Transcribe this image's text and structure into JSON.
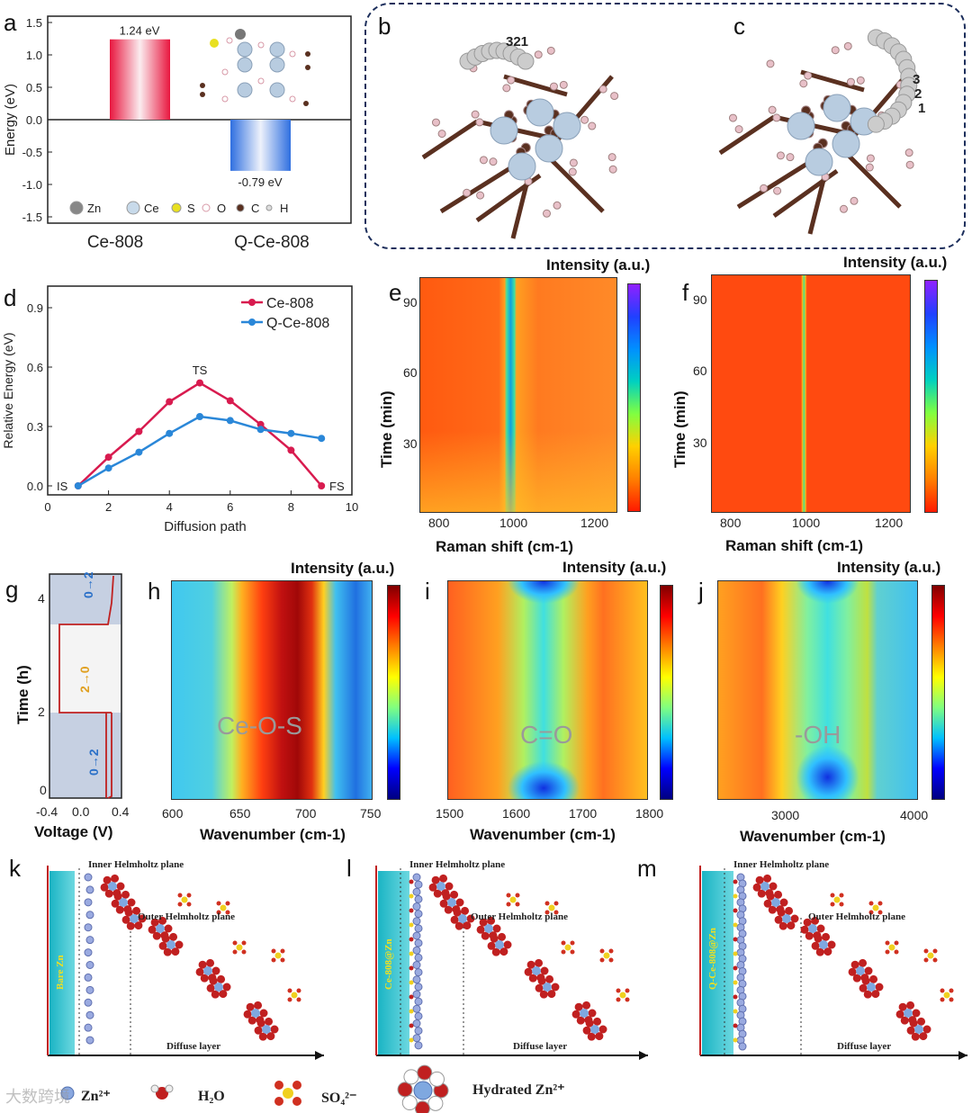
{
  "panel_labels": {
    "a": "a",
    "b": "b",
    "c": "c",
    "d": "d",
    "e": "e",
    "f": "f",
    "g": "g",
    "h": "h",
    "i": "i",
    "j": "j",
    "k": "k",
    "l": "l",
    "m": "m"
  },
  "colors": {
    "ce808": "#d81b4f",
    "qce808": "#2a87d8",
    "dashed_box": "#1d2f5c"
  },
  "chart_data": [
    {
      "id": "a",
      "type": "bar",
      "ylabel": "Energy (eV)",
      "ylim": [
        -1.5,
        1.5
      ],
      "yticks": [
        "1.5",
        "1.0",
        "0.5",
        "0.0",
        "-0.5",
        "-1.0",
        "-1.5"
      ],
      "categories": [
        "Ce-808",
        "Q-Ce-808"
      ],
      "values": [
        1.24,
        -0.79
      ],
      "data_labels": [
        "1.24 eV",
        "-0.79 eV"
      ],
      "legend": [
        "Zn",
        "Ce",
        "S",
        "O",
        "C",
        "H"
      ]
    },
    {
      "id": "d",
      "type": "line",
      "xlabel": "Diffusion path",
      "ylabel": "Relative Energy (eV)",
      "xlim": [
        0,
        10
      ],
      "ylim": [
        -0.05,
        1.0
      ],
      "xticks": [
        "0",
        "2",
        "4",
        "6",
        "8",
        "10"
      ],
      "yticks": [
        "0.0",
        "0.3",
        "0.6",
        "0.9"
      ],
      "legend_position": "top-right",
      "x": [
        1,
        2,
        3,
        4,
        5,
        6,
        7,
        8,
        9
      ],
      "series": [
        {
          "name": "Ce-808",
          "values": [
            0,
            0.145,
            0.275,
            0.425,
            0.52,
            0.43,
            0.31,
            0.18,
            0
          ]
        },
        {
          "name": "Q-Ce-808",
          "values": [
            0,
            0.09,
            0.17,
            0.265,
            0.35,
            0.33,
            0.285,
            0.265,
            0.24
          ]
        }
      ],
      "annotations": [
        "IS",
        "TS",
        "FS"
      ]
    },
    {
      "id": "e",
      "type": "heatmap",
      "title": "Intensity (a.u.)",
      "xlabel": "Raman shift (cm-1)",
      "ylabel": "Time (min)",
      "xticks": [
        "800",
        "1000",
        "1200"
      ],
      "yticks": [
        "30",
        "60",
        "90"
      ]
    },
    {
      "id": "f",
      "type": "heatmap",
      "title": "Intensity (a.u.)",
      "xlabel": "Raman shift (cm-1)",
      "ylabel": "Time (min)",
      "xticks": [
        "800",
        "1000",
        "1200"
      ],
      "yticks": [
        "30",
        "60",
        "90"
      ]
    },
    {
      "id": "g",
      "type": "line",
      "xlabel": "Voltage (V)",
      "ylabel": "Time (h)",
      "xticks": [
        "-0.4",
        "0.0",
        "0.4"
      ],
      "yticks": [
        "0",
        "2",
        "4"
      ],
      "annotations": [
        "0→2",
        "2→0",
        "0→2"
      ]
    },
    {
      "id": "h",
      "type": "heatmap",
      "title": "Intensity (a.u.)",
      "xlabel": "Wavenumber (cm-1)",
      "xticks": [
        "600",
        "650",
        "700",
        "750"
      ],
      "annotation": "Ce-O-S"
    },
    {
      "id": "i",
      "type": "heatmap",
      "title": "Intensity (a.u.)",
      "xlabel": "Wavenumber (cm-1)",
      "xticks": [
        "1500",
        "1600",
        "1700",
        "1800"
      ],
      "annotation": "C=O"
    },
    {
      "id": "j",
      "type": "heatmap",
      "title": "Intensity (a.u.)",
      "xlabel": "Wavenumber (cm-1)",
      "xticks": [
        "3000",
        "4000"
      ],
      "annotation": "-OH"
    }
  ],
  "structures": {
    "b_numbers": "321",
    "c_numbers": [
      "3",
      "2",
      "1"
    ]
  },
  "schemes": {
    "k": {
      "electrode": "Bare Zn",
      "ihp": "Inner Helmholtz plane",
      "ohp": "Outer Helmholtz plane",
      "diffuse": "Diffuse layer"
    },
    "l": {
      "electrode": "Ce-808@Zn",
      "ihp": "Inner Helmholtz plane",
      "ohp": "Outer Helmholtz plane",
      "diffuse": "Diffuse layer"
    },
    "m": {
      "electrode": "Q-Ce-808@Zn",
      "ihp": "Inner Helmholtz plane",
      "ohp": "Outer Helmholtz plane",
      "diffuse": "Diffuse layer"
    }
  },
  "legend_bottom": {
    "zn": "Zn²⁺",
    "h2o": "H₂O",
    "so4": "SO₄²⁻",
    "hydrated": "Hydrated Zn²⁺"
  },
  "watermark": "大数跨境"
}
